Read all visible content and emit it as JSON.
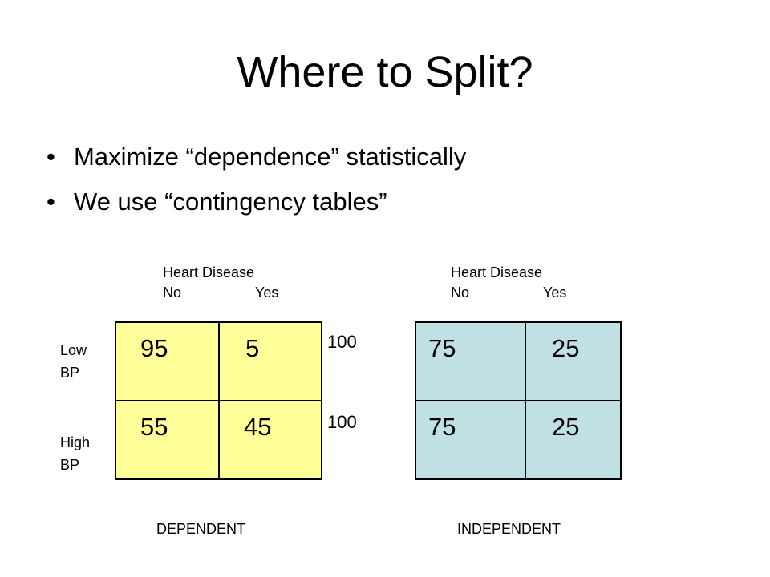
{
  "slide": {
    "title": "Where to Split?",
    "bullets": [
      "Maximize “dependence” statistically",
      "We use “contingency tables”"
    ]
  },
  "row_labels": {
    "low": [
      "Low",
      "BP"
    ],
    "high": [
      "High",
      "BP"
    ]
  },
  "dependent": {
    "header_title": "Heart Disease",
    "header_no": "No",
    "header_yes": "Yes",
    "cells": [
      [
        "95",
        "5"
      ],
      [
        "55",
        "45"
      ]
    ],
    "row_totals": [
      "100",
      "100"
    ],
    "caption": "DEPENDENT",
    "fill_color": "#ffff99"
  },
  "independent": {
    "header_title": "Heart Disease",
    "header_no": "No",
    "header_yes": "Yes",
    "cells": [
      [
        "75",
        "25"
      ],
      [
        "75",
        "25"
      ]
    ],
    "caption": "INDEPENDENT",
    "fill_color": "#c0e0e4"
  }
}
